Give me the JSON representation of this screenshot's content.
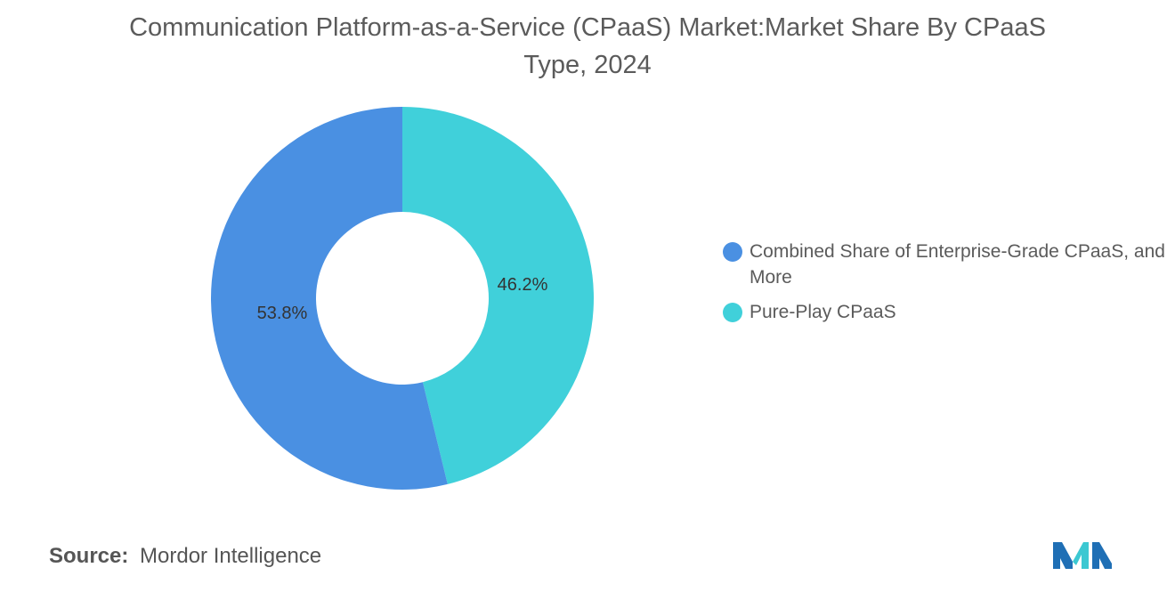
{
  "chart_data": {
    "type": "pie",
    "title": "Communication Platform-as-a-Service (CPaaS) Market:Market Share By CPaaS Type, 2024",
    "categories": [
      "Combined Share of Enterprise-Grade CPaaS, and More",
      "Pure-Play CPaaS"
    ],
    "values": [
      53.8,
      46.2
    ],
    "data_labels": [
      "53.8%",
      "46.2%"
    ],
    "colors": [
      "#4a90e2",
      "#40d0da"
    ],
    "donut": true,
    "legend_position": "right"
  },
  "source": {
    "label": "Source:",
    "value": "Mordor Intelligence"
  },
  "logo": {
    "icon": "mordor-intelligence-logo",
    "colors": [
      "#1f6fb5",
      "#3cc8d2"
    ]
  }
}
